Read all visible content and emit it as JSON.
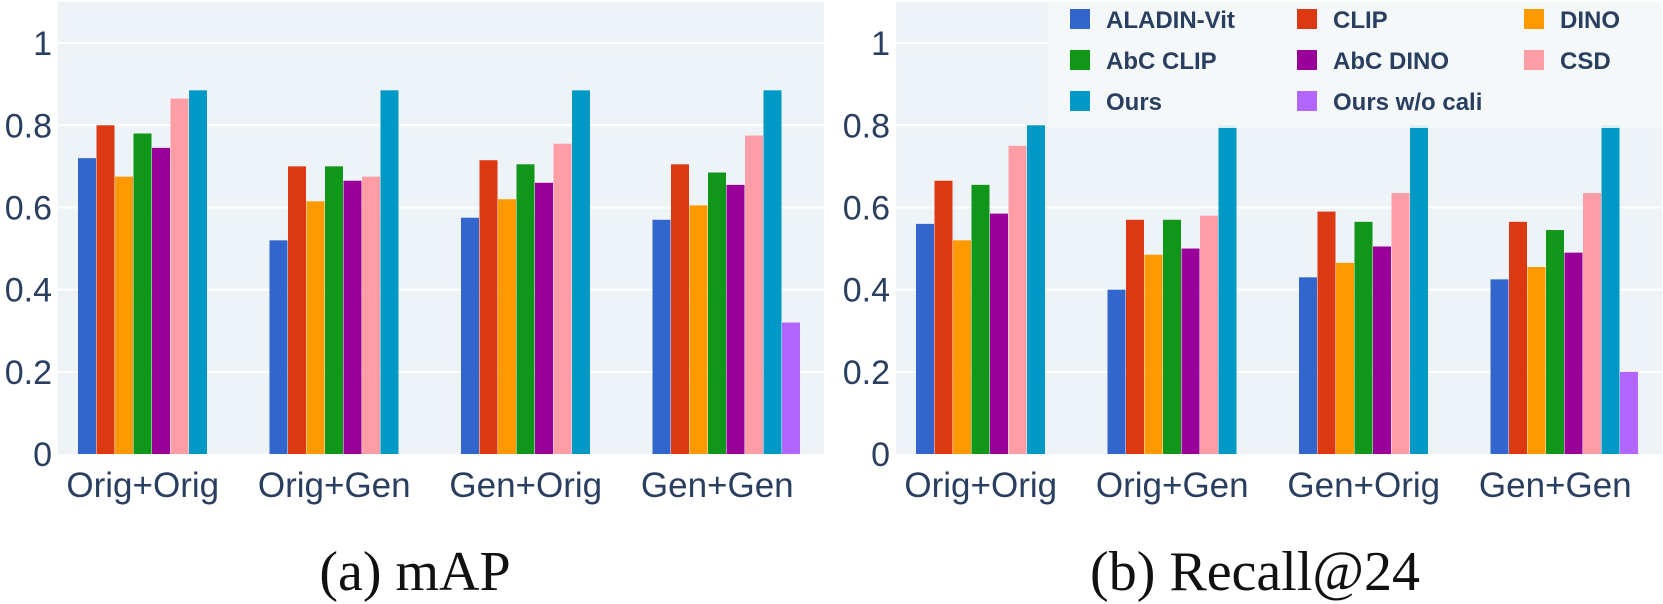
{
  "chart_data": [
    {
      "type": "bar",
      "title": "",
      "caption": "(a) mAP",
      "xlabel": "",
      "ylabel": "",
      "ylim": [
        0,
        1.1
      ],
      "yticks": [
        "0",
        "0.2",
        "0.4",
        "0.6",
        "0.8",
        "1"
      ],
      "categories": [
        "Orig+Orig",
        "Orig+Gen",
        "Gen+Orig",
        "Gen+Gen"
      ],
      "series": [
        {
          "name": "ALADIN-Vit",
          "values": [
            0.72,
            0.52,
            0.575,
            0.57
          ]
        },
        {
          "name": "CLIP",
          "values": [
            0.8,
            0.7,
            0.715,
            0.705
          ]
        },
        {
          "name": "DINO",
          "values": [
            0.675,
            0.615,
            0.62,
            0.605
          ]
        },
        {
          "name": "AbC CLIP",
          "values": [
            0.78,
            0.7,
            0.705,
            0.685
          ]
        },
        {
          "name": "AbC DINO",
          "values": [
            0.745,
            0.665,
            0.66,
            0.655
          ]
        },
        {
          "name": "CSD",
          "values": [
            0.865,
            0.675,
            0.755,
            0.775
          ]
        },
        {
          "name": "Ours",
          "values": [
            0.885,
            0.885,
            0.885,
            0.885
          ]
        },
        {
          "name": "Ours w/o cali",
          "values": [
            null,
            null,
            null,
            0.32
          ]
        }
      ]
    },
    {
      "type": "bar",
      "title": "",
      "caption": "(b) Recall@24",
      "xlabel": "",
      "ylabel": "",
      "ylim": [
        0,
        1.1
      ],
      "yticks": [
        "0",
        "0.2",
        "0.4",
        "0.6",
        "0.8",
        "1"
      ],
      "categories": [
        "Orig+Orig",
        "Orig+Gen",
        "Gen+Orig",
        "Gen+Gen"
      ],
      "series": [
        {
          "name": "ALADIN-Vit",
          "values": [
            0.56,
            0.4,
            0.43,
            0.425
          ]
        },
        {
          "name": "CLIP",
          "values": [
            0.665,
            0.57,
            0.59,
            0.565
          ]
        },
        {
          "name": "DINO",
          "values": [
            0.52,
            0.485,
            0.465,
            0.455
          ]
        },
        {
          "name": "AbC CLIP",
          "values": [
            0.655,
            0.57,
            0.565,
            0.545
          ]
        },
        {
          "name": "AbC DINO",
          "values": [
            0.585,
            0.5,
            0.505,
            0.49
          ]
        },
        {
          "name": "CSD",
          "values": [
            0.75,
            0.58,
            0.635,
            0.635
          ]
        },
        {
          "name": "Ours",
          "values": [
            0.8,
            0.8,
            0.8,
            0.8
          ]
        },
        {
          "name": "Ours w/o cali",
          "values": [
            null,
            null,
            null,
            0.2
          ]
        }
      ],
      "legend_position": "top-right"
    }
  ],
  "colors": {
    "ALADIN-Vit": "#3366cc",
    "CLIP": "#dc3912",
    "DINO": "#ff9900",
    "AbC CLIP": "#109618",
    "AbC DINO": "#990099",
    "CSD": "#ff9da7",
    "Ours": "#0099c6",
    "Ours w/o cali": "#b266ff"
  },
  "legend": [
    {
      "name": "ALADIN-Vit",
      "color": "#3366cc"
    },
    {
      "name": "CLIP",
      "color": "#dc3912"
    },
    {
      "name": "DINO",
      "color": "#ff9900"
    },
    {
      "name": "AbC CLIP",
      "color": "#109618"
    },
    {
      "name": "AbC DINO",
      "color": "#990099"
    },
    {
      "name": "CSD",
      "color": "#ff9da7"
    },
    {
      "name": "Ours",
      "color": "#0099c6"
    },
    {
      "name": "Ours w/o cali",
      "color": "#b266ff"
    }
  ]
}
